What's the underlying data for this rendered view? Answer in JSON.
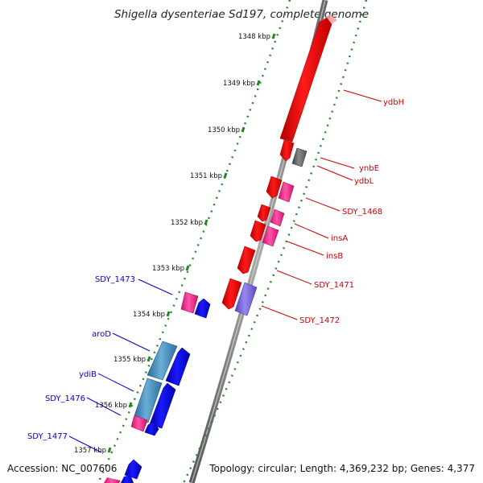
{
  "title": "Shigella dysenteriae Sd197, complete genome",
  "footer": {
    "accession": "Accession: NC_007606",
    "topology": "Topology: circular; Length: 4,369,232 bp; Genes: 4,377"
  },
  "colors": {
    "forward_gene": "#ff0000",
    "reverse_gene": "#0000ff",
    "mobile_element": "#ff3399",
    "pseudo_gene": "#777777",
    "reverse_label": "#0000cc",
    "forward_label": "#cc0000",
    "tick": "#228822",
    "backbone": "#888888"
  },
  "ticks": [
    {
      "label": "1348 kbp"
    },
    {
      "label": "1349 kbp"
    },
    {
      "label": "1350 kbp"
    },
    {
      "label": "1351 kbp"
    },
    {
      "label": "1352 kbp"
    },
    {
      "label": "1353 kbp"
    },
    {
      "label": "1354 kbp"
    },
    {
      "label": "1355 kbp"
    },
    {
      "label": "1356 kbp"
    },
    {
      "label": "1357 kbp"
    }
  ],
  "genes_forward": [
    {
      "name": "ydbH"
    },
    {
      "name": "ynbE"
    },
    {
      "name": "ydbL"
    },
    {
      "name": "SDY_1468"
    },
    {
      "name": "insA"
    },
    {
      "name": "insB"
    },
    {
      "name": "SDY_1471"
    },
    {
      "name": "SDY_1472"
    }
  ],
  "genes_reverse": [
    {
      "name": "SDY_1473"
    },
    {
      "name": "aroD"
    },
    {
      "name": "ydiB"
    },
    {
      "name": "SDY_1476"
    },
    {
      "name": "SDY_1477"
    }
  ]
}
